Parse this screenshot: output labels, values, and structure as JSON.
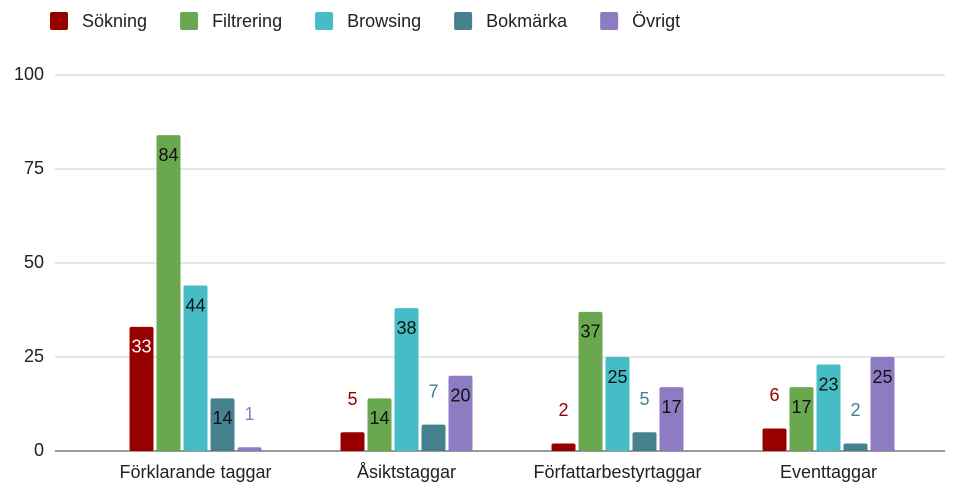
{
  "chart_data": {
    "type": "bar",
    "categories": [
      "Förklarande taggar",
      "Åsiktstaggar",
      "Författarbestyrtaggar",
      "Eventtaggar"
    ],
    "series": [
      {
        "name": "Sökning",
        "color": "#980000",
        "values": [
          33,
          5,
          2,
          6
        ]
      },
      {
        "name": "Filtrering",
        "color": "#6aa84f",
        "values": [
          84,
          14,
          37,
          17
        ]
      },
      {
        "name": "Browsing",
        "color": "#46bdc6",
        "values": [
          44,
          38,
          25,
          23
        ]
      },
      {
        "name": "Bokmärka",
        "color": "#45818e",
        "values": [
          14,
          7,
          5,
          2
        ]
      },
      {
        "name": "Övrigt",
        "color": "#8e7cc3",
        "values": [
          1,
          20,
          17,
          25
        ]
      }
    ],
    "ylim": [
      0,
      100
    ],
    "yticks": [
      0,
      25,
      50,
      75,
      100
    ],
    "grid": true,
    "legend": "top"
  }
}
